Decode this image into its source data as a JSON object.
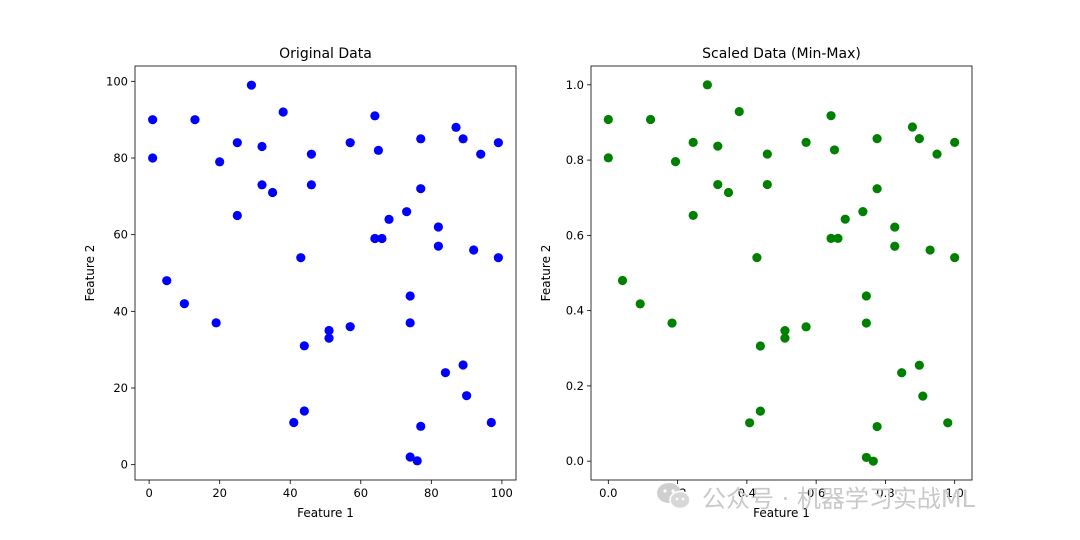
{
  "chart_data": [
    {
      "type": "scatter",
      "title": "Original Data",
      "xlabel": "Feature 1",
      "ylabel": "Feature 2",
      "xlim": [
        -4,
        104
      ],
      "ylim": [
        -4,
        104
      ],
      "xticks": [
        0,
        20,
        40,
        60,
        80,
        100
      ],
      "yticks": [
        0,
        20,
        40,
        60,
        80,
        100
      ],
      "color": "#0000ff",
      "points": [
        [
          1,
          90
        ],
        [
          1,
          80
        ],
        [
          5,
          48
        ],
        [
          10,
          42
        ],
        [
          13,
          90
        ],
        [
          19,
          37
        ],
        [
          20,
          79
        ],
        [
          25,
          84
        ],
        [
          25,
          65
        ],
        [
          29,
          99
        ],
        [
          32,
          83
        ],
        [
          32,
          73
        ],
        [
          35,
          71
        ],
        [
          38,
          92
        ],
        [
          41,
          11
        ],
        [
          43,
          54
        ],
        [
          44,
          31
        ],
        [
          44,
          14
        ],
        [
          46,
          81
        ],
        [
          46,
          73
        ],
        [
          51,
          35
        ],
        [
          51,
          33
        ],
        [
          57,
          84
        ],
        [
          57,
          36
        ],
        [
          64,
          91
        ],
        [
          64,
          59
        ],
        [
          65,
          82
        ],
        [
          66,
          59
        ],
        [
          68,
          64
        ],
        [
          73,
          66
        ],
        [
          74,
          44
        ],
        [
          74,
          37
        ],
        [
          74,
          2
        ],
        [
          76,
          1
        ],
        [
          77,
          85
        ],
        [
          77,
          72
        ],
        [
          77,
          10
        ],
        [
          82,
          62
        ],
        [
          82,
          57
        ],
        [
          84,
          24
        ],
        [
          87,
          88
        ],
        [
          89,
          85
        ],
        [
          89,
          26
        ],
        [
          90,
          18
        ],
        [
          92,
          56
        ],
        [
          94,
          81
        ],
        [
          97,
          11
        ],
        [
          99,
          84
        ],
        [
          99,
          54
        ]
      ]
    },
    {
      "type": "scatter",
      "title": "Scaled Data (Min-Max)",
      "xlabel": "Feature 1",
      "ylabel": "Feature 2",
      "xlim": [
        -0.05,
        1.05
      ],
      "ylim": [
        -0.05,
        1.05
      ],
      "xticks": [
        0.0,
        0.2,
        0.4,
        0.6,
        0.8,
        1.0
      ],
      "yticks": [
        0.0,
        0.2,
        0.4,
        0.6,
        0.8,
        1.0
      ],
      "tick_format": 1,
      "color": "#008000",
      "points": [
        [
          0.0,
          0.908
        ],
        [
          0.0,
          0.806
        ],
        [
          0.041,
          0.48
        ],
        [
          0.092,
          0.418
        ],
        [
          0.122,
          0.908
        ],
        [
          0.184,
          0.367
        ],
        [
          0.194,
          0.796
        ],
        [
          0.245,
          0.847
        ],
        [
          0.245,
          0.653
        ],
        [
          0.286,
          1.0
        ],
        [
          0.316,
          0.837
        ],
        [
          0.316,
          0.735
        ],
        [
          0.347,
          0.714
        ],
        [
          0.378,
          0.929
        ],
        [
          0.408,
          0.102
        ],
        [
          0.429,
          0.541
        ],
        [
          0.439,
          0.306
        ],
        [
          0.439,
          0.133
        ],
        [
          0.459,
          0.816
        ],
        [
          0.459,
          0.735
        ],
        [
          0.51,
          0.347
        ],
        [
          0.51,
          0.327
        ],
        [
          0.571,
          0.847
        ],
        [
          0.571,
          0.357
        ],
        [
          0.643,
          0.918
        ],
        [
          0.643,
          0.592
        ],
        [
          0.653,
          0.827
        ],
        [
          0.663,
          0.592
        ],
        [
          0.684,
          0.643
        ],
        [
          0.735,
          0.663
        ],
        [
          0.745,
          0.439
        ],
        [
          0.745,
          0.367
        ],
        [
          0.745,
          0.01
        ],
        [
          0.765,
          0.0
        ],
        [
          0.776,
          0.857
        ],
        [
          0.776,
          0.724
        ],
        [
          0.776,
          0.092
        ],
        [
          0.827,
          0.622
        ],
        [
          0.827,
          0.571
        ],
        [
          0.847,
          0.235
        ],
        [
          0.878,
          0.888
        ],
        [
          0.898,
          0.857
        ],
        [
          0.898,
          0.255
        ],
        [
          0.908,
          0.173
        ],
        [
          0.929,
          0.561
        ],
        [
          0.949,
          0.816
        ],
        [
          0.98,
          0.102
        ],
        [
          1.0,
          0.847
        ],
        [
          1.0,
          0.541
        ]
      ]
    }
  ],
  "watermark": {
    "text": "公众号 · 机器学习实战ML",
    "color": "#c9c9c9",
    "icon": "wechat-icon"
  }
}
